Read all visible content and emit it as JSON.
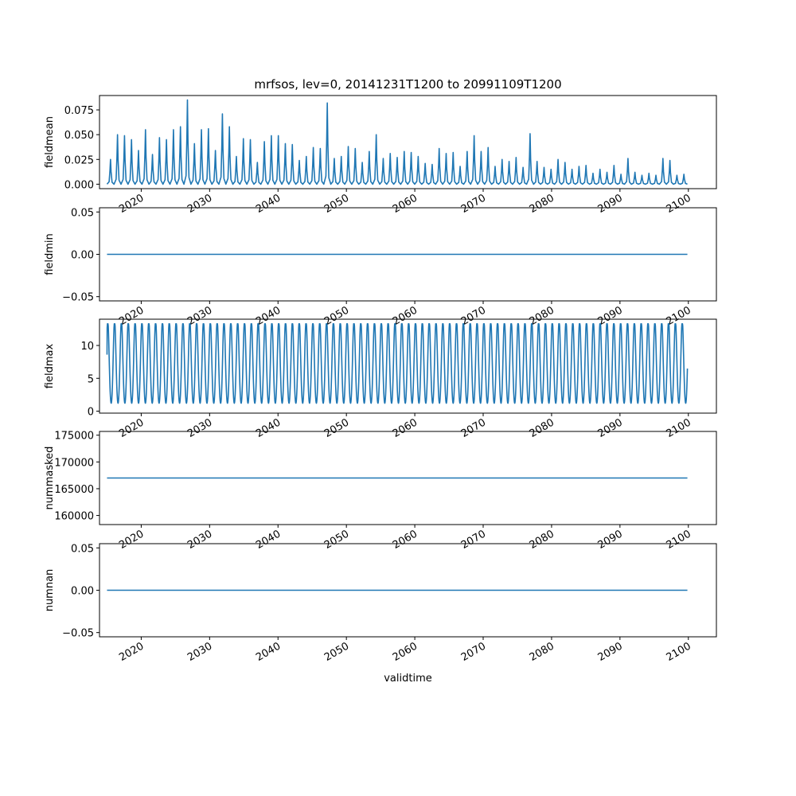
{
  "figure": {
    "title": "mrfsos, lev=0, 20141231T1200 to 20991109T1200",
    "xlabel": "validtime",
    "series_color": "#1f77b4"
  },
  "chart_data": [
    {
      "type": "line",
      "ylabel": "fieldmean",
      "xlim": [
        2013.9,
        2104.1
      ],
      "ylim": [
        -0.0045,
        0.0895
      ],
      "yticks": [
        "0.000",
        "0.025",
        "0.050",
        "0.075"
      ],
      "ytick_values": [
        0.0,
        0.025,
        0.05,
        0.075
      ],
      "xtick_labels": [
        "2020",
        "2030",
        "2040",
        "2050",
        "2060",
        "2070",
        "2080",
        "2090",
        "2100"
      ],
      "series": [
        {
          "pattern": "annual_peaks",
          "x_start": 2015.0,
          "x_end": 2099.86,
          "baseline": 0.0,
          "peaks": [
            0.025,
            0.05,
            0.049,
            0.045,
            0.034,
            0.055,
            0.03,
            0.047,
            0.045,
            0.055,
            0.058,
            0.085,
            0.041,
            0.055,
            0.056,
            0.034,
            0.071,
            0.058,
            0.028,
            0.046,
            0.045,
            0.022,
            0.043,
            0.049,
            0.049,
            0.041,
            0.04,
            0.024,
            0.028,
            0.037,
            0.036,
            0.082,
            0.026,
            0.028,
            0.038,
            0.036,
            0.022,
            0.033,
            0.05,
            0.026,
            0.031,
            0.027,
            0.033,
            0.032,
            0.028,
            0.021,
            0.02,
            0.036,
            0.031,
            0.032,
            0.018,
            0.033,
            0.049,
            0.033,
            0.037,
            0.018,
            0.025,
            0.023,
            0.027,
            0.017,
            0.051,
            0.023,
            0.017,
            0.015,
            0.025,
            0.022,
            0.015,
            0.018,
            0.019,
            0.011,
            0.015,
            0.012,
            0.019,
            0.01,
            0.026,
            0.012,
            0.009,
            0.011,
            0.009,
            0.026,
            0.024,
            0.009,
            0.01
          ]
        }
      ]
    },
    {
      "type": "line",
      "ylabel": "fieldmin",
      "xlim": [
        2013.9,
        2104.1
      ],
      "ylim": [
        -0.055,
        0.055
      ],
      "yticks": [
        "−0.05",
        "0.00",
        "0.05"
      ],
      "ytick_values": [
        -0.05,
        0.0,
        0.05
      ],
      "xtick_labels": [
        "2020",
        "2030",
        "2040",
        "2050",
        "2060",
        "2070",
        "2080",
        "2090",
        "2100"
      ],
      "series": [
        {
          "pattern": "constant",
          "x": [
            2015.0,
            2099.86
          ],
          "y": [
            0.0,
            0.0
          ]
        }
      ]
    },
    {
      "type": "line",
      "ylabel": "fieldmax",
      "xlim": [
        2013.9,
        2104.1
      ],
      "ylim": [
        -0.3,
        14.0
      ],
      "yticks": [
        "0",
        "5",
        "10"
      ],
      "ytick_values": [
        0,
        5,
        10
      ],
      "xtick_labels": [
        "2020",
        "2030",
        "2040",
        "2050",
        "2060",
        "2070",
        "2080",
        "2090",
        "2100"
      ],
      "series": [
        {
          "pattern": "annual_oscillation",
          "x_start": 2015.0,
          "x_end": 2099.86,
          "y_start": 8.6,
          "min": 0.6,
          "max": 13.3
        }
      ]
    },
    {
      "type": "line",
      "ylabel": "nummasked",
      "xlim": [
        2013.9,
        2104.1
      ],
      "ylim": [
        158300,
        175700
      ],
      "yticks": [
        "160000",
        "165000",
        "170000",
        "175000"
      ],
      "ytick_values": [
        160000,
        165000,
        170000,
        175000
      ],
      "xtick_labels": [
        "2020",
        "2030",
        "2040",
        "2050",
        "2060",
        "2070",
        "2080",
        "2090",
        "2100"
      ],
      "series": [
        {
          "pattern": "constant",
          "x": [
            2015.0,
            2099.86
          ],
          "y": [
            167000,
            167000
          ]
        }
      ]
    },
    {
      "type": "line",
      "ylabel": "numnan",
      "xlim": [
        2013.9,
        2104.1
      ],
      "ylim": [
        -0.055,
        0.055
      ],
      "yticks": [
        "−0.05",
        "0.00",
        "0.05"
      ],
      "ytick_values": [
        -0.05,
        0.0,
        0.05
      ],
      "xtick_labels": [
        "2020",
        "2030",
        "2040",
        "2050",
        "2060",
        "2070",
        "2080",
        "2090",
        "2100"
      ],
      "series": [
        {
          "pattern": "constant",
          "x": [
            2015.0,
            2099.86
          ],
          "y": [
            0.0,
            0.0
          ]
        }
      ]
    }
  ]
}
